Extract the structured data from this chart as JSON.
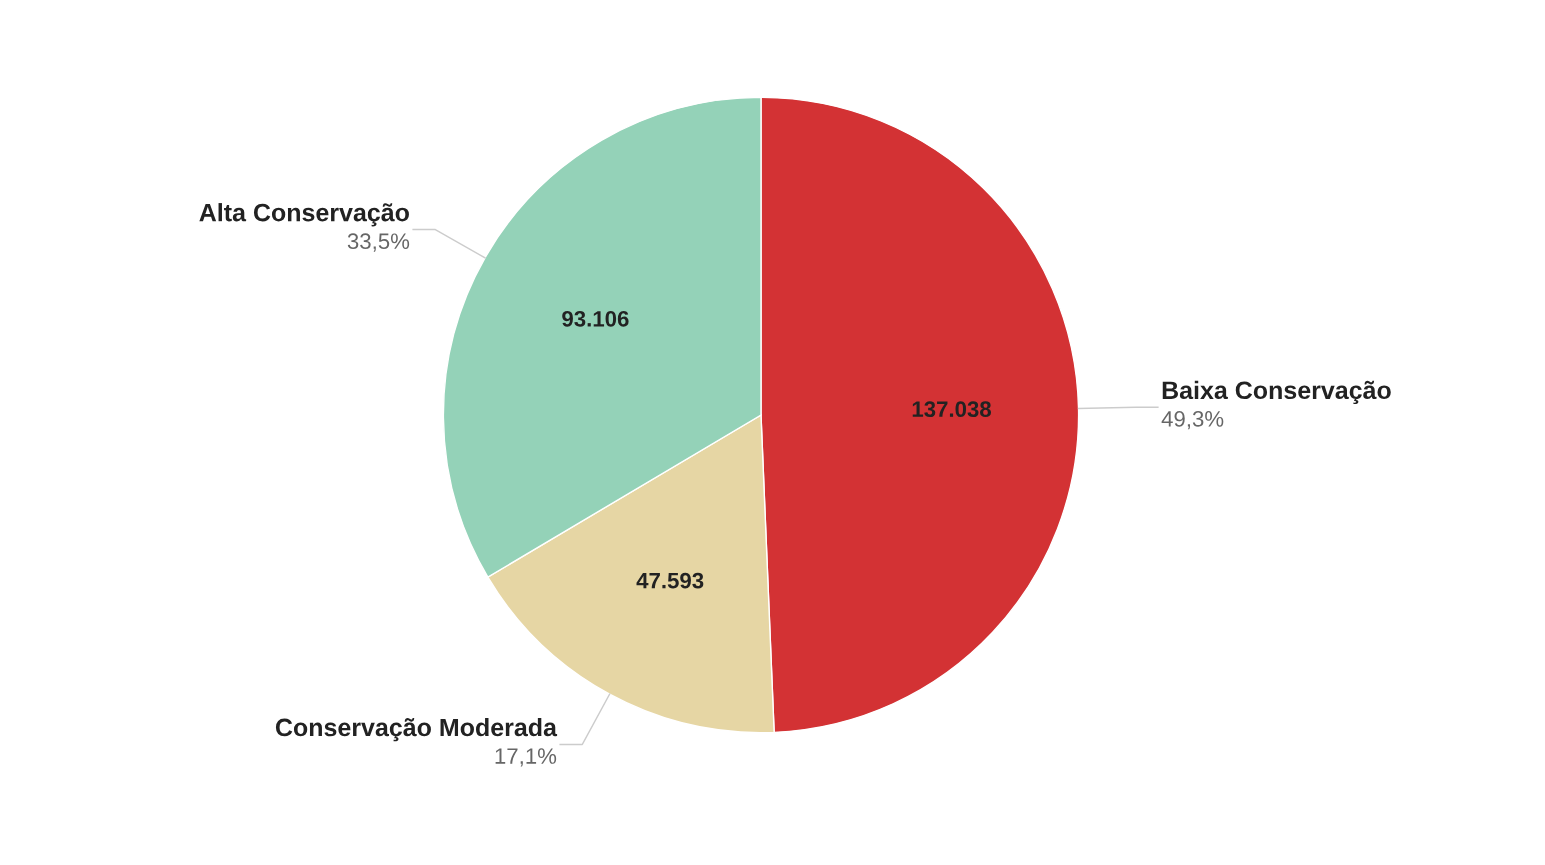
{
  "chart_data": {
    "type": "pie",
    "categories": [
      "Baixa Conservação",
      "Conservação Moderada",
      "Alta Conservação"
    ],
    "values": [
      137038,
      47593,
      93106
    ],
    "value_labels": [
      "137.038",
      "47.593",
      "93.106"
    ],
    "colors": [
      "#d33234",
      "#e6d6a4",
      "#94d2b8"
    ],
    "annotations": [
      {
        "text": "49,3%",
        "x": "Baixa Conservação"
      },
      {
        "text": "17,1%",
        "x": "Conservação Moderada"
      },
      {
        "text": "33,5%",
        "x": "Alta Conservação"
      }
    ],
    "legend": false
  }
}
